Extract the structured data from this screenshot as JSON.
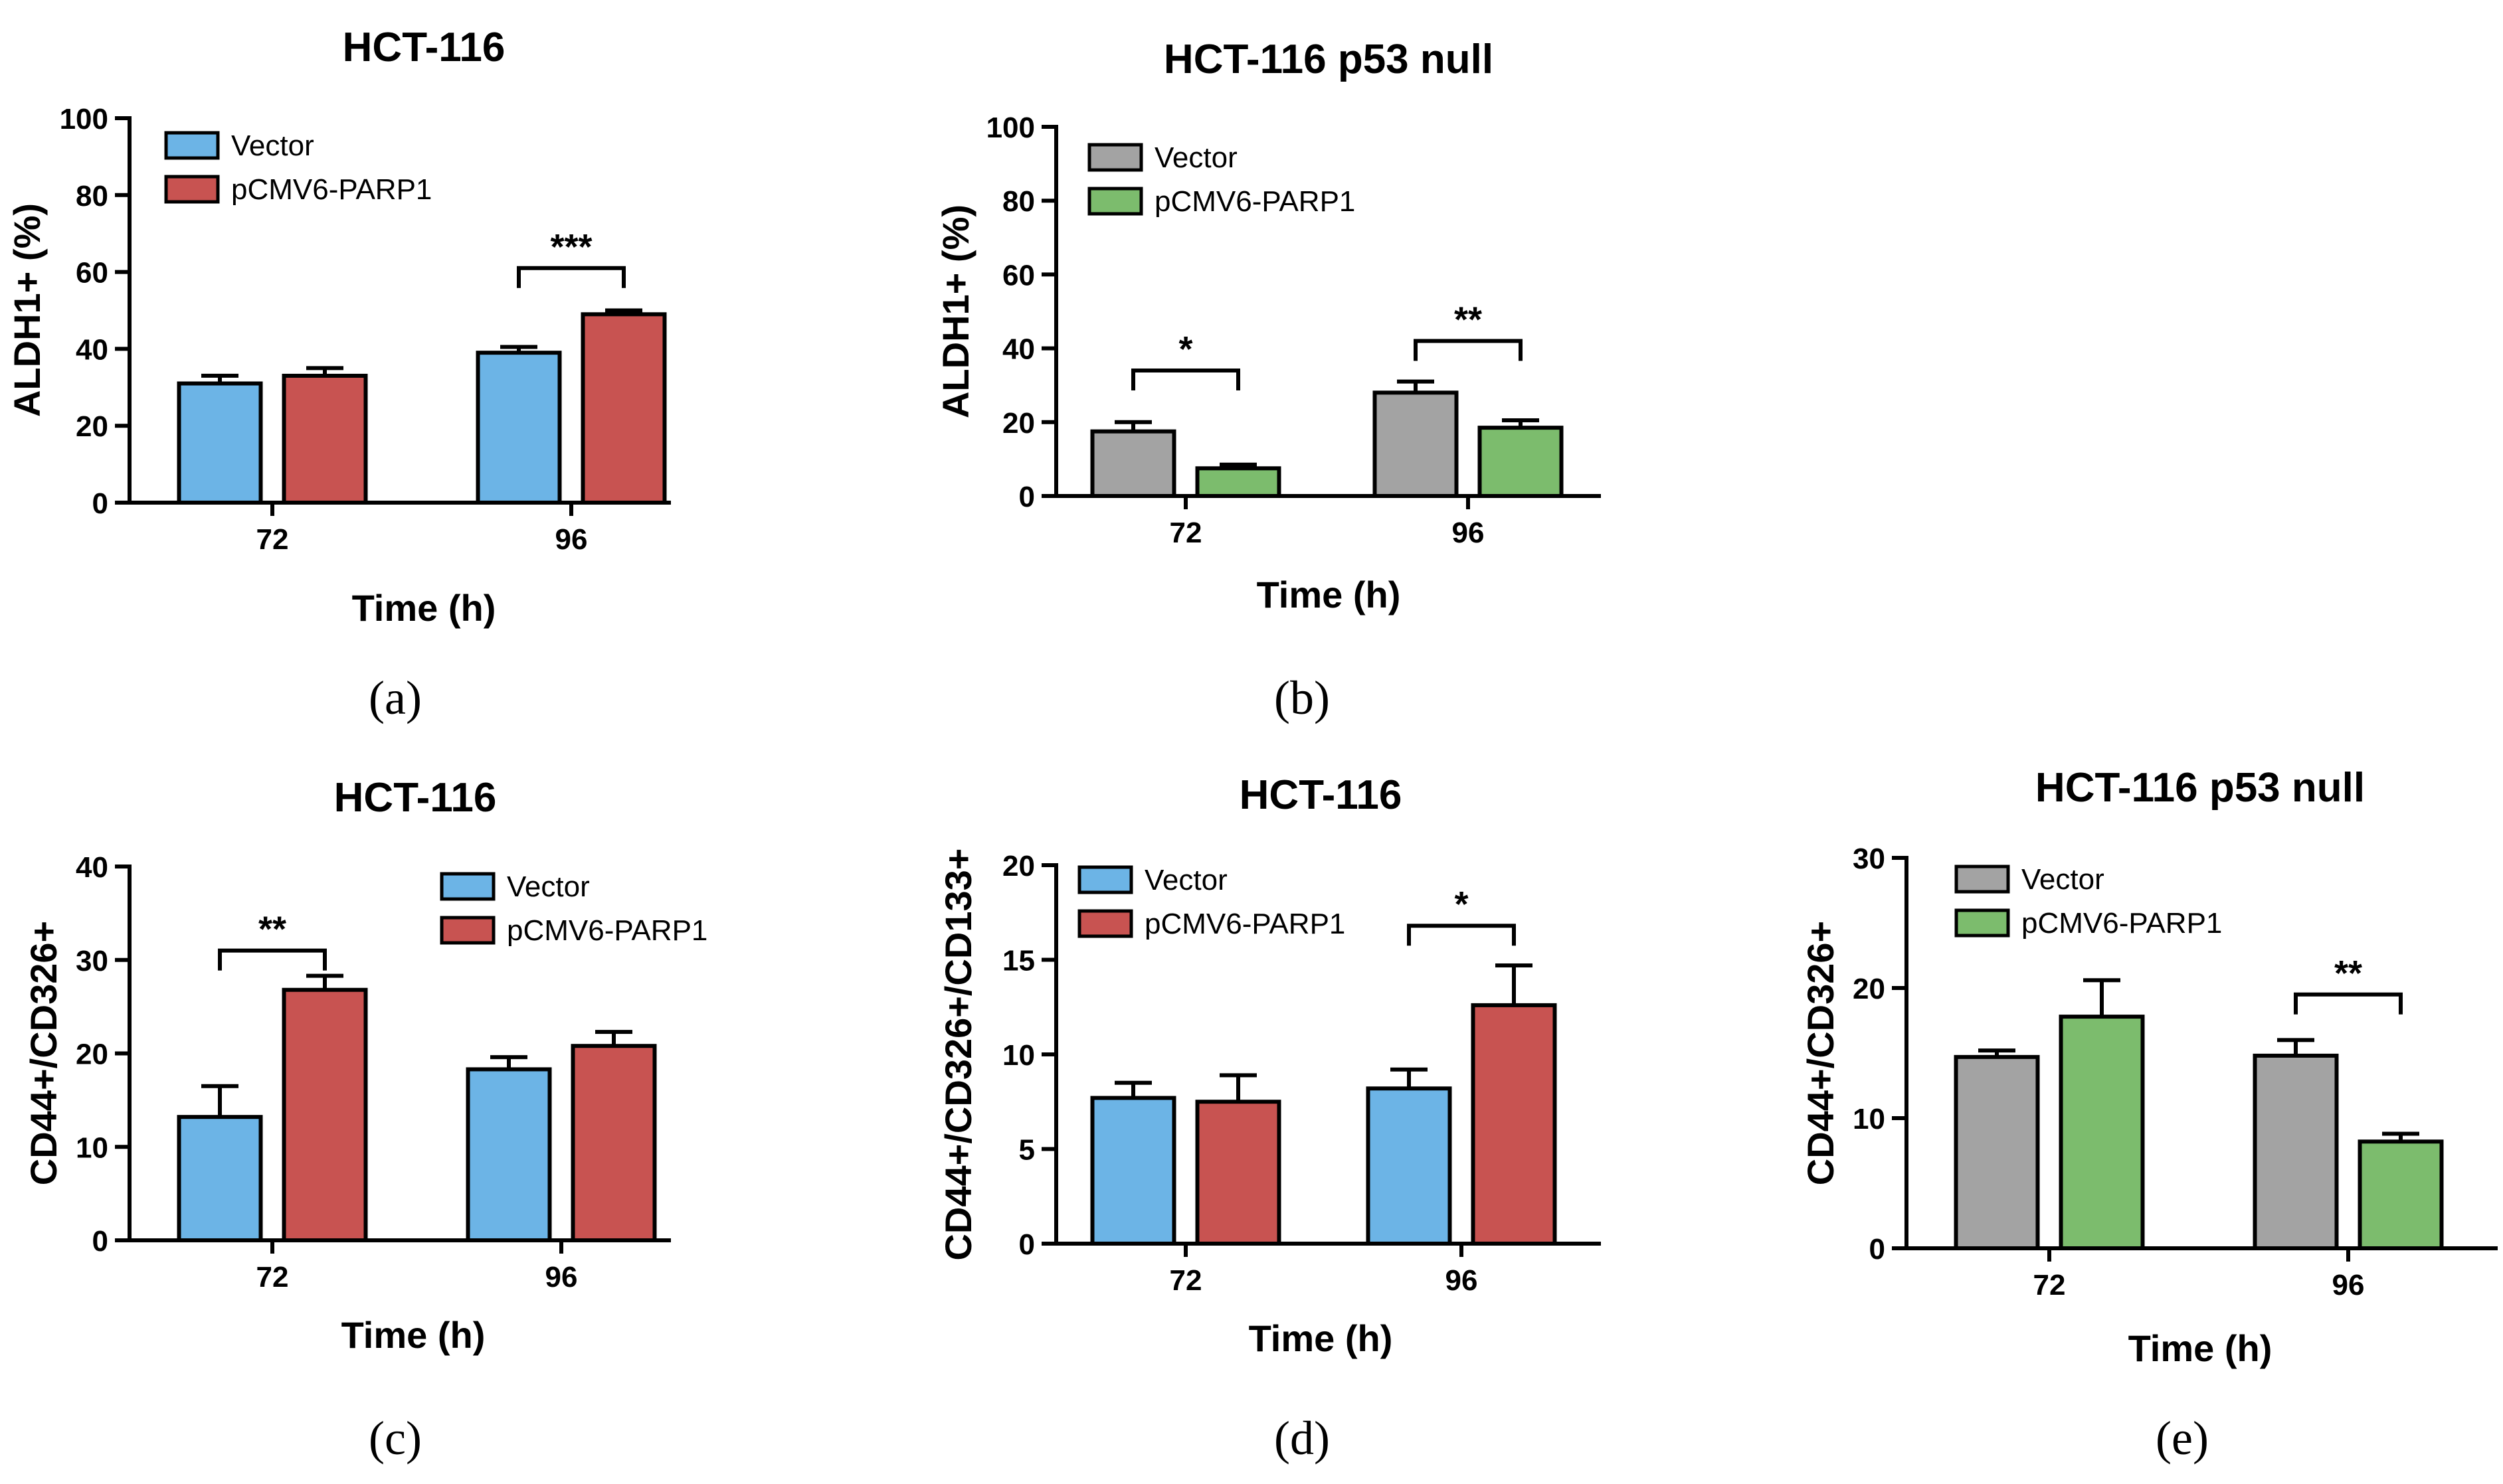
{
  "colors": {
    "blue": "#6cb4e6",
    "red": "#c85351",
    "gray": "#a3a3a3",
    "green": "#7cbc6d",
    "axis": "#000000"
  },
  "chart_data": [
    {
      "id": "a",
      "type": "bar",
      "title": "HCT-116",
      "panel_label": "(a)",
      "xlabel": "Time (h)",
      "ylabel": "ALDH1+ (%)",
      "categories": [
        "72",
        "96"
      ],
      "ylim": [
        0,
        100
      ],
      "yticks": [
        0,
        20,
        40,
        60,
        80,
        100
      ],
      "legend_position": "top-left",
      "series": [
        {
          "name": "Vector",
          "color": "#6cb4e6",
          "values": [
            31,
            39
          ],
          "errors": [
            2,
            1.5
          ]
        },
        {
          "name": "pCMV6-PARP1",
          "color": "#c85351",
          "values": [
            33,
            49
          ],
          "errors": [
            2,
            1
          ]
        }
      ],
      "significance": [
        {
          "category_index": 1,
          "label": "***",
          "y": 61
        }
      ]
    },
    {
      "id": "b",
      "type": "bar",
      "title": "HCT-116 p53 null",
      "panel_label": "(b)",
      "xlabel": "Time (h)",
      "ylabel": "ALDH1+ (%)",
      "categories": [
        "72",
        "96"
      ],
      "ylim": [
        0,
        100
      ],
      "yticks": [
        0,
        20,
        40,
        60,
        80,
        100
      ],
      "legend_position": "top-left",
      "series": [
        {
          "name": "Vector",
          "color": "#a3a3a3",
          "values": [
            17.5,
            28
          ],
          "errors": [
            2.5,
            3
          ]
        },
        {
          "name": "pCMV6-PARP1",
          "color": "#7cbc6d",
          "values": [
            7.5,
            18.5
          ],
          "errors": [
            1,
            2
          ]
        }
      ],
      "significance": [
        {
          "category_index": 0,
          "label": "*",
          "y": 34
        },
        {
          "category_index": 1,
          "label": "**",
          "y": 42
        }
      ]
    },
    {
      "id": "c",
      "type": "bar",
      "title": "HCT-116",
      "panel_label": "(c)",
      "xlabel": "Time (h)",
      "ylabel": "CD44+/CD326+",
      "categories": [
        "72",
        "96"
      ],
      "ylim": [
        0,
        40
      ],
      "yticks": [
        0,
        10,
        20,
        30,
        40
      ],
      "legend_position": "top-right",
      "series": [
        {
          "name": "Vector",
          "color": "#6cb4e6",
          "values": [
            13.2,
            18.3
          ],
          "errors": [
            3.3,
            1.3
          ]
        },
        {
          "name": "pCMV6-PARP1",
          "color": "#c85351",
          "values": [
            26.8,
            20.8
          ],
          "errors": [
            1.5,
            1.5
          ]
        }
      ],
      "significance": [
        {
          "category_index": 0,
          "label": "**",
          "y": 31
        }
      ]
    },
    {
      "id": "d",
      "type": "bar",
      "title": "HCT-116",
      "panel_label": "(d)",
      "xlabel": "Time (h)",
      "ylabel": "CD44+/CD326+/CD133+",
      "categories": [
        "72",
        "96"
      ],
      "ylim": [
        0,
        20
      ],
      "yticks": [
        0,
        5,
        10,
        15,
        20
      ],
      "legend_position": "top-left",
      "series": [
        {
          "name": "Vector",
          "color": "#6cb4e6",
          "values": [
            7.7,
            8.2
          ],
          "errors": [
            0.8,
            1
          ]
        },
        {
          "name": "pCMV6-PARP1",
          "color": "#c85351",
          "values": [
            7.5,
            12.6
          ],
          "errors": [
            1.4,
            2.1
          ]
        }
      ],
      "significance": [
        {
          "category_index": 1,
          "label": "*",
          "y": 16.8
        }
      ]
    },
    {
      "id": "e",
      "type": "bar",
      "title": "HCT-116 p53 null",
      "panel_label": "(e)",
      "xlabel": "Time (h)",
      "ylabel": "CD44+/CD326+",
      "categories": [
        "72",
        "96"
      ],
      "ylim": [
        0,
        30
      ],
      "yticks": [
        0,
        10,
        20,
        30
      ],
      "legend_position": "top-left",
      "series": [
        {
          "name": "Vector",
          "color": "#a3a3a3",
          "values": [
            14.7,
            14.8
          ],
          "errors": [
            0.5,
            1.2
          ]
        },
        {
          "name": "pCMV6-PARP1",
          "color": "#7cbc6d",
          "values": [
            17.8,
            8.2
          ],
          "errors": [
            2.8,
            0.6
          ]
        }
      ],
      "significance": [
        {
          "category_index": 1,
          "label": "**",
          "y": 19.5
        }
      ]
    }
  ]
}
